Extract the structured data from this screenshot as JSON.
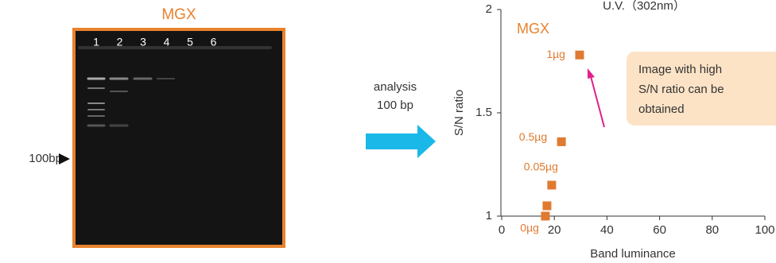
{
  "gel": {
    "title": "MGX",
    "lanes": [
      "1",
      "2",
      "3",
      "4",
      "5",
      "6"
    ],
    "marker": "100bp"
  },
  "arrow_text": [
    "analysis",
    "100 bp"
  ],
  "chart_data": {
    "type": "scatter",
    "title": "U.V.（302nm）",
    "x_label": "Band luminance",
    "y_label": "S/N ratio",
    "annotation": "MGX",
    "callout": [
      "Image with high",
      "S/N ratio can be",
      "obtained"
    ],
    "series": [
      {
        "name": "MGX",
        "color": "#e07a30",
        "x": [
          16.6,
          17.2,
          19.0,
          22.7,
          29.6
        ],
        "values": [
          1.0,
          1.05,
          1.15,
          1.36,
          1.78
        ],
        "point_labels": [
          "0µg",
          null,
          "0.05µg",
          "0.5µg",
          "1µg"
        ]
      }
    ],
    "xlim": [
      0,
      100
    ],
    "xticks": [
      0,
      20,
      40,
      60,
      80,
      100
    ],
    "ylim": [
      1,
      2
    ],
    "yticks": [
      1,
      1.5,
      2
    ]
  }
}
